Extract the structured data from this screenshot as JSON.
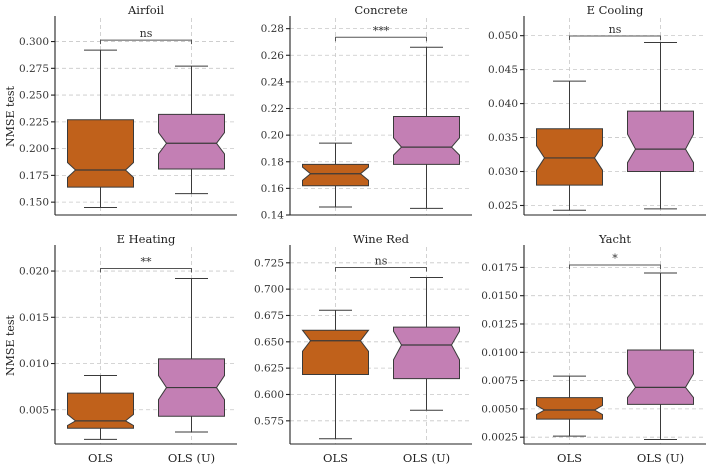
{
  "chart_data": {
    "type": "boxplot",
    "categories": [
      "OLS",
      "OLS (U)"
    ],
    "ylabel": "NMSE test",
    "colors": {
      "OLS": "#c0611b",
      "OLS (U)": "#c37fb4"
    },
    "panels": [
      {
        "title": "Airfoil",
        "ylim": [
          0.138,
          0.322
        ],
        "ticks": [
          0.15,
          0.175,
          0.2,
          0.225,
          0.25,
          0.275,
          0.3
        ],
        "tick_labels": [
          "0.150",
          "0.175",
          "0.200",
          "0.225",
          "0.250",
          "0.275",
          "0.300"
        ],
        "significance": "ns",
        "boxes": [
          {
            "name": "OLS",
            "whislo": 0.145,
            "q1": 0.164,
            "notch_lo": 0.173,
            "med": 0.18,
            "notch_hi": 0.187,
            "q3": 0.227,
            "whishi": 0.292
          },
          {
            "name": "OLS (U)",
            "whislo": 0.158,
            "q1": 0.181,
            "notch_lo": 0.195,
            "med": 0.205,
            "notch_hi": 0.215,
            "q3": 0.232,
            "whishi": 0.277
          }
        ]
      },
      {
        "title": "Concrete",
        "ylim": [
          0.14,
          0.288
        ],
        "ticks": [
          0.14,
          0.16,
          0.18,
          0.2,
          0.22,
          0.24,
          0.26,
          0.28
        ],
        "tick_labels": [
          "0.14",
          "0.16",
          "0.18",
          "0.20",
          "0.22",
          "0.24",
          "0.26",
          "0.28"
        ],
        "significance": "***",
        "boxes": [
          {
            "name": "OLS",
            "whislo": 0.146,
            "q1": 0.162,
            "notch_lo": 0.166,
            "med": 0.171,
            "notch_hi": 0.176,
            "q3": 0.178,
            "whishi": 0.194
          },
          {
            "name": "OLS (U)",
            "whislo": 0.145,
            "q1": 0.178,
            "notch_lo": 0.185,
            "med": 0.191,
            "notch_hi": 0.198,
            "q3": 0.214,
            "whishi": 0.266
          }
        ]
      },
      {
        "title": "E Cooling",
        "ylim": [
          0.0236,
          0.0526
        ],
        "ticks": [
          0.025,
          0.03,
          0.035,
          0.04,
          0.045,
          0.05
        ],
        "tick_labels": [
          "0.025",
          "0.030",
          "0.035",
          "0.040",
          "0.045",
          "0.050"
        ],
        "significance": "ns",
        "boxes": [
          {
            "name": "OLS",
            "whislo": 0.0243,
            "q1": 0.028,
            "notch_lo": 0.0302,
            "med": 0.032,
            "notch_hi": 0.0338,
            "q3": 0.0363,
            "whishi": 0.0433
          },
          {
            "name": "OLS (U)",
            "whislo": 0.0245,
            "q1": 0.03,
            "notch_lo": 0.0313,
            "med": 0.0333,
            "notch_hi": 0.0355,
            "q3": 0.0389,
            "whishi": 0.049
          }
        ]
      },
      {
        "title": "E Heating",
        "ylim": [
          0.0013,
          0.0226
        ],
        "ticks": [
          0.005,
          0.01,
          0.015,
          0.02
        ],
        "tick_labels": [
          "0.005",
          "0.010",
          "0.015",
          "0.020"
        ],
        "significance": "**",
        "boxes": [
          {
            "name": "OLS",
            "whislo": 0.0018,
            "q1": 0.003,
            "notch_lo": 0.0033,
            "med": 0.0038,
            "notch_hi": 0.0045,
            "q3": 0.0068,
            "whishi": 0.0087
          },
          {
            "name": "OLS (U)",
            "whislo": 0.0026,
            "q1": 0.0043,
            "notch_lo": 0.0061,
            "med": 0.0074,
            "notch_hi": 0.0087,
            "q3": 0.0105,
            "whishi": 0.0192
          }
        ]
      },
      {
        "title": "Wine Red",
        "ylim": [
          0.553,
          0.74
        ],
        "ticks": [
          0.575,
          0.6,
          0.625,
          0.65,
          0.675,
          0.7,
          0.725
        ],
        "tick_labels": [
          "0.575",
          "0.600",
          "0.625",
          "0.650",
          "0.675",
          "0.700",
          "0.725"
        ],
        "significance": "ns",
        "boxes": [
          {
            "name": "OLS",
            "whislo": 0.558,
            "q1": 0.619,
            "notch_lo": 0.641,
            "med": 0.651,
            "notch_hi": 0.661,
            "q3": 0.661,
            "whishi": 0.68
          },
          {
            "name": "OLS (U)",
            "whislo": 0.585,
            "q1": 0.615,
            "notch_lo": 0.633,
            "med": 0.647,
            "notch_hi": 0.66,
            "q3": 0.664,
            "whishi": 0.711
          }
        ]
      },
      {
        "title": "Yacht",
        "ylim": [
          0.0019,
          0.0193
        ],
        "ticks": [
          0.0025,
          0.005,
          0.0075,
          0.01,
          0.0125,
          0.015,
          0.0175
        ],
        "tick_labels": [
          "0.0025",
          "0.0050",
          "0.0075",
          "0.0100",
          "0.0125",
          "0.0150",
          "0.0175"
        ],
        "significance": "*",
        "boxes": [
          {
            "name": "OLS",
            "whislo": 0.0026,
            "q1": 0.0041,
            "notch_lo": 0.0045,
            "med": 0.0049,
            "notch_hi": 0.0053,
            "q3": 0.006,
            "whishi": 0.0079
          },
          {
            "name": "OLS (U)",
            "whislo": 0.0023,
            "q1": 0.0054,
            "notch_lo": 0.006,
            "med": 0.0069,
            "notch_hi": 0.0081,
            "q3": 0.0102,
            "whishi": 0.017
          }
        ]
      }
    ]
  }
}
